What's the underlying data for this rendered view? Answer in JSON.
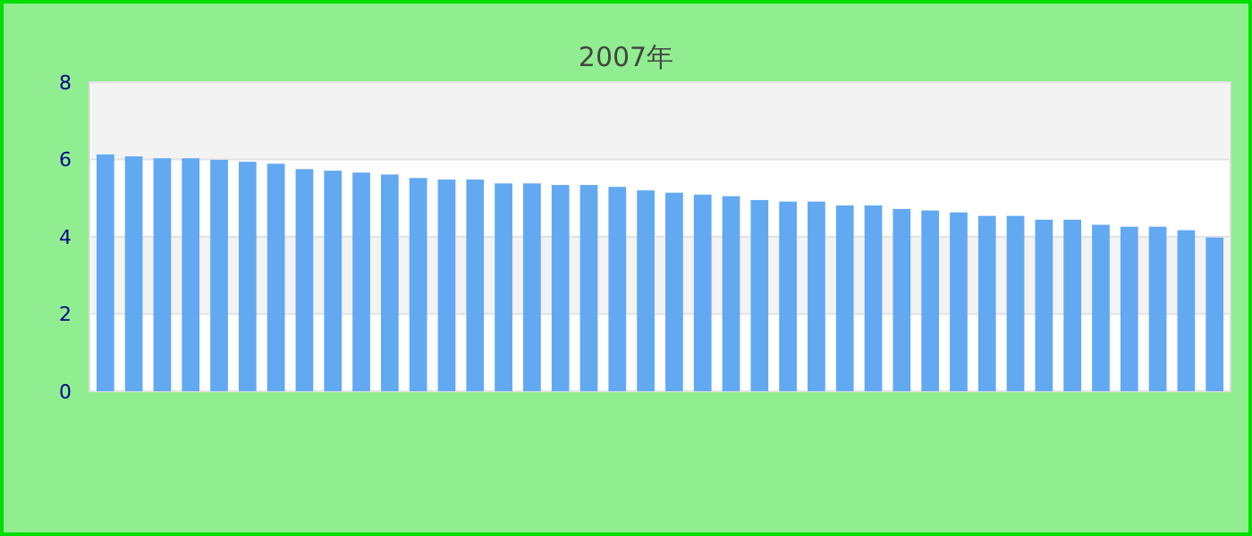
{
  "chart_data": {
    "type": "bar",
    "subtitle": "2007年",
    "categories": [
      null,
      null,
      null,
      null,
      null,
      null,
      null,
      null,
      null,
      null,
      null,
      null,
      null,
      null,
      null,
      null,
      null,
      null,
      null,
      null,
      null,
      null,
      null,
      null,
      null,
      null,
      null,
      null,
      null,
      null,
      null,
      null,
      null,
      null,
      null,
      null,
      null,
      null,
      null,
      null
    ],
    "values": [
      6.13,
      6.08,
      6.03,
      6.03,
      5.99,
      5.94,
      5.89,
      5.75,
      5.71,
      5.66,
      5.61,
      5.52,
      5.48,
      5.48,
      5.38,
      5.38,
      5.34,
      5.34,
      5.29,
      5.2,
      5.14,
      5.09,
      5.05,
      4.95,
      4.91,
      4.91,
      4.81,
      4.81,
      4.72,
      4.68,
      4.63,
      4.54,
      4.54,
      4.44,
      4.44,
      4.31,
      4.26,
      4.26,
      4.17,
      3.98
    ],
    "color": "#62a9f2",
    "ylim": [
      0,
      8
    ],
    "yticks": [
      0,
      2,
      4,
      6,
      8
    ],
    "grid": "y"
  }
}
